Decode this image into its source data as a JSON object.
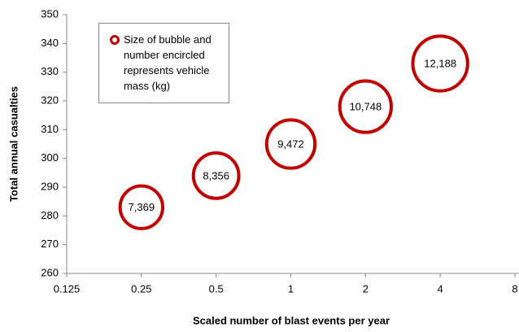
{
  "chart_data": {
    "type": "bubble",
    "xlabel": "Scaled number of blast events per year",
    "ylabel": "Total annual casualties",
    "xscale": "log2",
    "xlim": [
      0.125,
      8
    ],
    "xticks": [
      0.125,
      0.25,
      0.5,
      1,
      2,
      4,
      8
    ],
    "ylim": [
      260,
      350
    ],
    "yticks": [
      260,
      270,
      280,
      290,
      300,
      310,
      320,
      330,
      340,
      350
    ],
    "grid": false,
    "legend": "upper left",
    "series": [
      {
        "name": "Size of bubble and number encircled represents vehicle mass (kg)",
        "color": "#c00000",
        "x": [
          0.25,
          0.5,
          1,
          2,
          4
        ],
        "values": [
          283,
          294,
          305,
          318,
          333
        ],
        "sizes": [
          7369,
          8356,
          9472,
          10748,
          12188
        ],
        "size_labels": [
          "7,369",
          "8,356",
          "9,472",
          "10,748",
          "12,188"
        ]
      }
    ]
  }
}
